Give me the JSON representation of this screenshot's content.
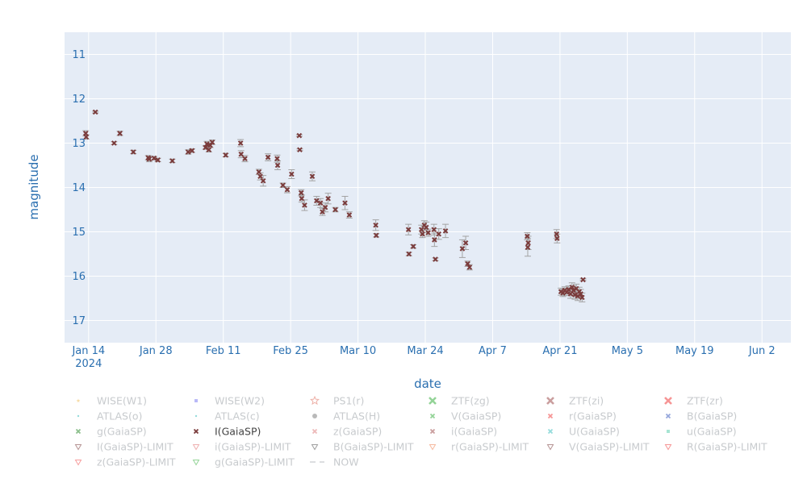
{
  "chart_data": {
    "type": "scatter",
    "xlabel": "date",
    "ylabel": "magnitude",
    "x_range": [
      "2024-01-09",
      "2024-06-08"
    ],
    "ylim": [
      17.5,
      10.5
    ],
    "y_reversed": true,
    "x_ticks": [
      {
        "date": "2024-01-14",
        "label": "Jan 14",
        "sublabel": "2024"
      },
      {
        "date": "2024-01-28",
        "label": "Jan 28",
        "sublabel": ""
      },
      {
        "date": "2024-02-11",
        "label": "Feb 11",
        "sublabel": ""
      },
      {
        "date": "2024-02-25",
        "label": "Feb 25",
        "sublabel": ""
      },
      {
        "date": "2024-03-10",
        "label": "Mar 10",
        "sublabel": ""
      },
      {
        "date": "2024-03-24",
        "label": "Mar 24",
        "sublabel": ""
      },
      {
        "date": "2024-04-07",
        "label": "Apr 7",
        "sublabel": ""
      },
      {
        "date": "2024-04-21",
        "label": "Apr 21",
        "sublabel": ""
      },
      {
        "date": "2024-05-05",
        "label": "May 5",
        "sublabel": ""
      },
      {
        "date": "2024-05-19",
        "label": "May 19",
        "sublabel": ""
      },
      {
        "date": "2024-06-02",
        "label": "Jun 2",
        "sublabel": ""
      }
    ],
    "y_ticks": [
      "11",
      "12",
      "13",
      "14",
      "15",
      "16",
      "17"
    ],
    "series": [
      {
        "name": "I(GaiaSP)",
        "color": "#7a3b3b",
        "error_color": "#a3a3a3",
        "points": [
          {
            "x": 4.4,
            "y": 12.78,
            "err": 0.06
          },
          {
            "x": 4.5,
            "y": 12.86,
            "err": 0.05
          },
          {
            "x": 6.4,
            "y": 12.3,
            "err": 0.02
          },
          {
            "x": 10.3,
            "y": 13.0,
            "err": 0.03
          },
          {
            "x": 11.5,
            "y": 12.78,
            "err": 0.05
          },
          {
            "x": 14.3,
            "y": 13.2,
            "err": 0.04
          },
          {
            "x": 17.4,
            "y": 13.33,
            "err": 0.05
          },
          {
            "x": 17.6,
            "y": 13.36,
            "err": 0.06
          },
          {
            "x": 18.6,
            "y": 13.34,
            "err": 0.04
          },
          {
            "x": 19.4,
            "y": 13.38,
            "err": 0.04
          },
          {
            "x": 22.4,
            "y": 13.4,
            "err": 0.04
          },
          {
            "x": 25.7,
            "y": 13.2,
            "err": 0.05
          },
          {
            "x": 26.5,
            "y": 13.17,
            "err": 0.04
          },
          {
            "x": 29.3,
            "y": 13.1,
            "err": 0.04
          },
          {
            "x": 29.6,
            "y": 13.02,
            "err": 0.06
          },
          {
            "x": 30.0,
            "y": 13.15,
            "err": 0.05
          },
          {
            "x": 30.3,
            "y": 13.05,
            "err": 0.05
          },
          {
            "x": 30.7,
            "y": 12.98,
            "err": 0.05
          },
          {
            "x": 33.5,
            "y": 13.27,
            "err": 0.04
          },
          {
            "x": 36.6,
            "y": 13.0,
            "err": 0.08
          },
          {
            "x": 36.7,
            "y": 13.25,
            "err": 0.08
          },
          {
            "x": 37.5,
            "y": 13.35,
            "err": 0.07
          },
          {
            "x": 40.4,
            "y": 13.65,
            "err": 0.06
          },
          {
            "x": 40.7,
            "y": 13.75,
            "err": 0.08
          },
          {
            "x": 41.3,
            "y": 13.85,
            "err": 0.12
          },
          {
            "x": 42.3,
            "y": 13.32,
            "err": 0.08
          },
          {
            "x": 44.2,
            "y": 13.35,
            "err": 0.08
          },
          {
            "x": 44.3,
            "y": 13.5,
            "err": 0.1
          },
          {
            "x": 45.4,
            "y": 13.95,
            "err": 0.05
          },
          {
            "x": 46.3,
            "y": 14.05,
            "err": 0.07
          },
          {
            "x": 47.2,
            "y": 13.7,
            "err": 0.1
          },
          {
            "x": 48.8,
            "y": 12.83,
            "err": 0.02
          },
          {
            "x": 48.9,
            "y": 13.15,
            "err": 0.02
          },
          {
            "x": 49.2,
            "y": 14.12,
            "err": 0.07
          },
          {
            "x": 49.3,
            "y": 14.25,
            "err": 0.08
          },
          {
            "x": 49.9,
            "y": 14.4,
            "err": 0.12
          },
          {
            "x": 51.5,
            "y": 13.75,
            "err": 0.1
          },
          {
            "x": 52.4,
            "y": 14.3,
            "err": 0.1
          },
          {
            "x": 53.2,
            "y": 14.35,
            "err": 0.1
          },
          {
            "x": 53.6,
            "y": 14.55,
            "err": 0.08
          },
          {
            "x": 54.2,
            "y": 14.45,
            "err": 0.1
          },
          {
            "x": 54.8,
            "y": 14.25,
            "err": 0.12
          },
          {
            "x": 56.3,
            "y": 14.5,
            "err": 0.05
          },
          {
            "x": 58.3,
            "y": 14.35,
            "err": 0.15
          },
          {
            "x": 59.2,
            "y": 14.62,
            "err": 0.07
          },
          {
            "x": 64.7,
            "y": 14.85,
            "err": 0.12
          },
          {
            "x": 64.8,
            "y": 15.08,
            "err": 0.04
          },
          {
            "x": 71.5,
            "y": 14.95,
            "err": 0.12
          },
          {
            "x": 71.6,
            "y": 15.5,
            "err": 0.04
          },
          {
            "x": 72.5,
            "y": 15.33,
            "err": 0.04
          },
          {
            "x": 74.2,
            "y": 14.95,
            "err": 0.1
          },
          {
            "x": 74.4,
            "y": 15.05,
            "err": 0.08
          },
          {
            "x": 74.8,
            "y": 14.85,
            "err": 0.1
          },
          {
            "x": 75.2,
            "y": 14.9,
            "err": 0.12
          },
          {
            "x": 75.6,
            "y": 15.02,
            "err": 0.08
          },
          {
            "x": 76.8,
            "y": 14.95,
            "err": 0.12
          },
          {
            "x": 76.9,
            "y": 15.18,
            "err": 0.15
          },
          {
            "x": 77.1,
            "y": 15.62,
            "err": 0.03
          },
          {
            "x": 77.8,
            "y": 15.05,
            "err": 0.12
          },
          {
            "x": 79.2,
            "y": 14.98,
            "err": 0.15
          },
          {
            "x": 82.7,
            "y": 15.38,
            "err": 0.2
          },
          {
            "x": 83.4,
            "y": 15.25,
            "err": 0.15
          },
          {
            "x": 83.8,
            "y": 15.72,
            "err": 0.06
          },
          {
            "x": 84.2,
            "y": 15.8,
            "err": 0.06
          },
          {
            "x": 96.2,
            "y": 15.1,
            "err": 0.08
          },
          {
            "x": 96.3,
            "y": 15.35,
            "err": 0.2
          },
          {
            "x": 96.4,
            "y": 15.25,
            "err": 0.15
          },
          {
            "x": 102.3,
            "y": 15.05,
            "err": 0.1
          },
          {
            "x": 102.4,
            "y": 15.15,
            "err": 0.1
          },
          {
            "x": 103.2,
            "y": 16.35,
            "err": 0.08
          },
          {
            "x": 103.6,
            "y": 16.38,
            "err": 0.08
          },
          {
            "x": 104.0,
            "y": 16.32,
            "err": 0.08
          },
          {
            "x": 104.4,
            "y": 16.36,
            "err": 0.08
          },
          {
            "x": 104.8,
            "y": 16.3,
            "err": 0.08
          },
          {
            "x": 105.2,
            "y": 16.4,
            "err": 0.1
          },
          {
            "x": 105.5,
            "y": 16.25,
            "err": 0.1
          },
          {
            "x": 105.8,
            "y": 16.32,
            "err": 0.1
          },
          {
            "x": 106.1,
            "y": 16.42,
            "err": 0.1
          },
          {
            "x": 106.4,
            "y": 16.28,
            "err": 0.1
          },
          {
            "x": 106.7,
            "y": 16.45,
            "err": 0.1
          },
          {
            "x": 107.0,
            "y": 16.35,
            "err": 0.1
          },
          {
            "x": 107.3,
            "y": 16.4,
            "err": 0.1
          },
          {
            "x": 107.6,
            "y": 16.48,
            "err": 0.1
          },
          {
            "x": 107.8,
            "y": 16.08,
            "err": 0.02
          }
        ]
      }
    ],
    "legend": [
      {
        "label": "WISE(W1)",
        "symbol": "star",
        "color": "#f0c060",
        "active": false
      },
      {
        "label": "WISE(W2)",
        "symbol": "square",
        "color": "#8080f0",
        "active": false
      },
      {
        "label": "PS1(r)",
        "symbol": "star-open",
        "color": "#e07060",
        "active": false
      },
      {
        "label": "ZTF(zg)",
        "symbol": "x",
        "color": "#3cb043",
        "active": false
      },
      {
        "label": "ZTF(zi)",
        "symbol": "x",
        "color": "#a05050",
        "active": false
      },
      {
        "label": "ZTF(zr)",
        "symbol": "x",
        "color": "#f04040",
        "active": false
      },
      {
        "label": "ATLAS(o)",
        "symbol": "dot",
        "color": "#40c0c0",
        "active": false
      },
      {
        "label": "ATLAS(c)",
        "symbol": "dot",
        "color": "#40c0c0",
        "active": false
      },
      {
        "label": "ATLAS(H)",
        "symbol": "circle",
        "color": "#808080",
        "active": false
      },
      {
        "label": "V(GaiaSP)",
        "symbol": "x-small",
        "color": "#3cb043",
        "active": false
      },
      {
        "label": "r(GaiaSP)",
        "symbol": "x-small",
        "color": "#f04040",
        "active": false
      },
      {
        "label": "B(GaiaSP)",
        "symbol": "x-small",
        "color": "#4060c0",
        "active": false
      },
      {
        "label": "g(GaiaSP)",
        "symbol": "x-small",
        "color": "#2e8b2e",
        "active": false
      },
      {
        "label": "I(GaiaSP)",
        "symbol": "x-small",
        "color": "#7a3b3b",
        "active": true
      },
      {
        "label": "z(GaiaSP)",
        "symbol": "x-small",
        "color": "#e08080",
        "active": false
      },
      {
        "label": "i(GaiaSP)",
        "symbol": "x-small",
        "color": "#a05050",
        "active": false
      },
      {
        "label": "U(GaiaSP)",
        "symbol": "x-small",
        "color": "#40c0c0",
        "active": false
      },
      {
        "label": "u(GaiaSP)",
        "symbol": "square",
        "color": "#60d0b0",
        "active": false
      },
      {
        "label": "I(GaiaSP)-LIMIT",
        "symbol": "triangle-down",
        "color": "#7a3b3b",
        "active": false
      },
      {
        "label": "i(GaiaSP)-LIMIT",
        "symbol": "triangle-down",
        "color": "#e07070",
        "active": false
      },
      {
        "label": "B(GaiaSP)-LIMIT",
        "symbol": "triangle-down",
        "color": "#505050",
        "active": false
      },
      {
        "label": "r(GaiaSP)-LIMIT",
        "symbol": "triangle-down",
        "color": "#f08050",
        "active": false
      },
      {
        "label": "V(GaiaSP)-LIMIT",
        "symbol": "triangle-down",
        "color": "#7a3b3b",
        "active": false
      },
      {
        "label": "R(GaiaSP)-LIMIT",
        "symbol": "triangle-down",
        "color": "#f04040",
        "active": false
      },
      {
        "label": "z(GaiaSP)-LIMIT",
        "symbol": "triangle-down",
        "color": "#f05050",
        "active": false
      },
      {
        "label": "g(GaiaSP)-LIMIT",
        "symbol": "triangle-down",
        "color": "#3cb043",
        "active": false
      },
      {
        "label": "NOW",
        "symbol": "dash",
        "color": "#9aa0a6",
        "active": false
      }
    ]
  }
}
